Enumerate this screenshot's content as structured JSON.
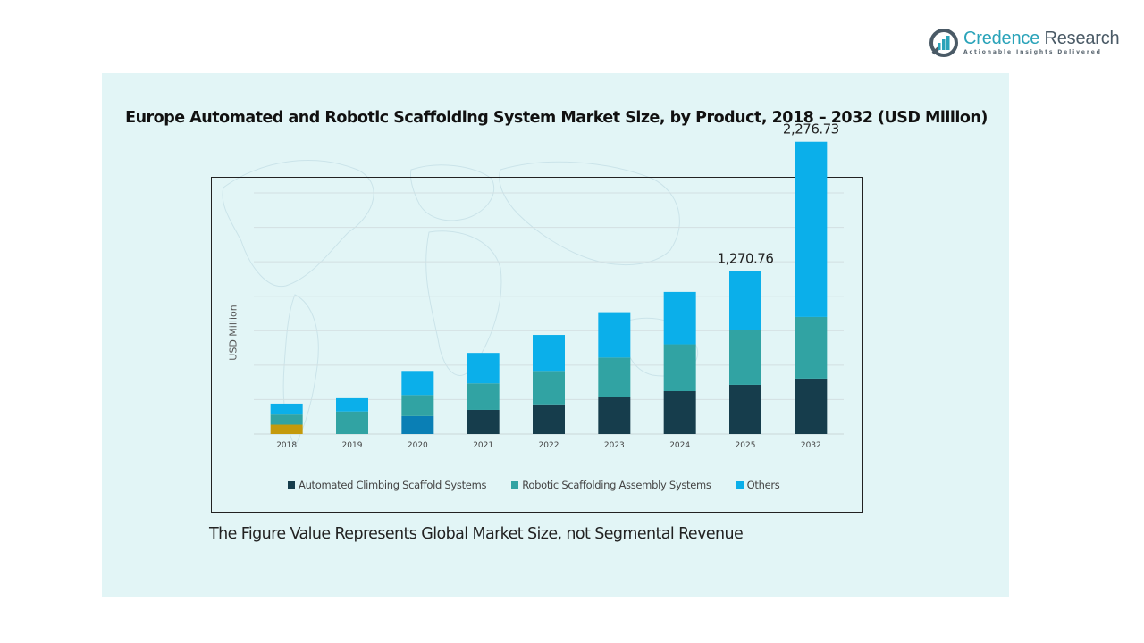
{
  "brand": {
    "name_part1": "Credence",
    "name_part2": " Research",
    "tagline": "Actionable Insights Delivered",
    "icon": "credence-logo-icon",
    "colors": {
      "primary": "#2aa3b9",
      "secondary": "#4a5a66"
    }
  },
  "footnote": "The Figure Value Represents Global Market Size, not Segmental Revenue",
  "chart_data": {
    "type": "bar",
    "stacked": true,
    "title": "Europe Automated and Robotic Scaffolding System Market Size, by Product, 2018 – 2032 (USD Million)",
    "xlabel": "",
    "ylabel": "USD Million",
    "categories": [
      "2018",
      "2019",
      "2020",
      "2021",
      "2022",
      "2023",
      "2024",
      "2025",
      "2032"
    ],
    "series": [
      {
        "name": "Automated Climbing Scaffold Systems",
        "color": "#163d4c",
        "values": [
          73,
          0,
          140,
          188,
          231,
          286,
          334,
          383,
          432
        ],
        "bar_colors": [
          "#c49a0c",
          "#163d4c",
          "#0a7fb5",
          "#163d4c",
          "#163d4c",
          "#163d4c",
          "#163d4c",
          "#163d4c",
          "#163d4c"
        ]
      },
      {
        "name": "Robotic Scaffolding Assembly Systems",
        "color": "#31a3a3",
        "values": [
          79,
          176,
          164,
          207,
          261,
          310,
          365,
          426,
          480
        ]
      },
      {
        "name": "Others",
        "color": "#0bafea",
        "values": [
          85,
          103,
          188,
          237,
          280,
          353,
          408,
          462,
          1365
        ]
      }
    ],
    "annotations": [
      {
        "category": "2025",
        "text": "1,270.76"
      },
      {
        "category": "2032",
        "text": "2,276.73"
      }
    ],
    "pixel_scale_units": "index (bars drawn not to scale; 2032 total annotated 2,276.73)",
    "ylim": [
      0,
      1640
    ],
    "gridlines": 7,
    "grid": true,
    "y_tick_labels_visible": false,
    "legend": {
      "position": "bottom"
    }
  }
}
